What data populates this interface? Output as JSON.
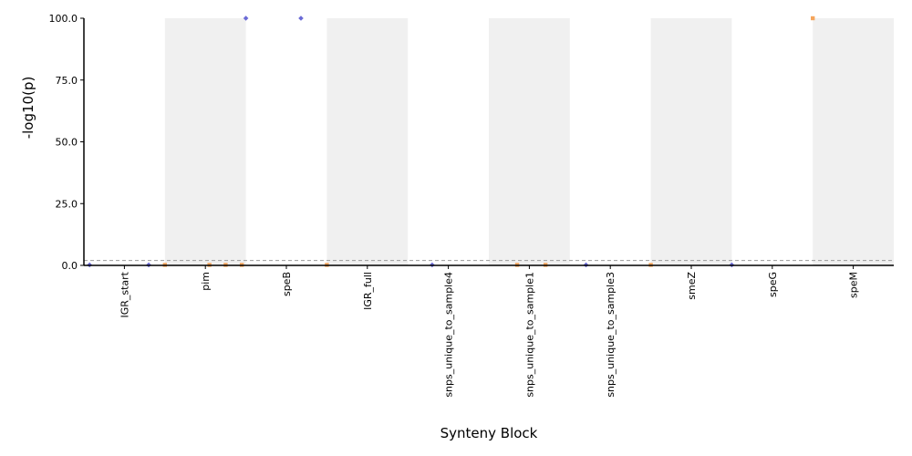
{
  "chart_data": {
    "type": "scatter",
    "subtype": "manhattan",
    "title": "",
    "xlabel": "Synteny Block",
    "ylabel": "-log10(p)",
    "ylim": [
      0,
      100
    ],
    "y_ticks": [
      "0.0",
      "25.0",
      "50.0",
      "75.0",
      "100.0"
    ],
    "threshold": 2.0,
    "grid": false,
    "categories": [
      "IGR_start",
      "pim",
      "speB",
      "IGR_full",
      "snps_unique_to_sample4",
      "snps_unique_to_sample1",
      "snps_unique_to_sample3",
      "smeZ",
      "speG",
      "speM"
    ],
    "band_shaded": [
      false,
      true,
      false,
      true,
      false,
      true,
      false,
      true,
      false,
      true
    ],
    "colors": {
      "band": "#f0f0f0",
      "blue": "#6a6ad6",
      "orange": "#f5a55c",
      "threshold": "#999999",
      "axis": "#000000"
    },
    "points": [
      {
        "x": 0.07,
        "y": 0.2,
        "color": "blue"
      },
      {
        "x": 0.8,
        "y": 0.2,
        "color": "blue"
      },
      {
        "x": 1.0,
        "y": 0.2,
        "color": "orange"
      },
      {
        "x": 1.55,
        "y": 0.2,
        "color": "orange"
      },
      {
        "x": 1.75,
        "y": 0.2,
        "color": "orange"
      },
      {
        "x": 1.95,
        "y": 0.2,
        "color": "orange"
      },
      {
        "x": 2.0,
        "y": 100.0,
        "color": "blue"
      },
      {
        "x": 2.68,
        "y": 100.0,
        "color": "blue"
      },
      {
        "x": 3.0,
        "y": 0.2,
        "color": "orange"
      },
      {
        "x": 4.3,
        "y": 0.2,
        "color": "blue"
      },
      {
        "x": 5.35,
        "y": 0.2,
        "color": "orange"
      },
      {
        "x": 5.7,
        "y": 0.2,
        "color": "orange"
      },
      {
        "x": 6.2,
        "y": 0.2,
        "color": "blue"
      },
      {
        "x": 7.0,
        "y": 0.2,
        "color": "orange"
      },
      {
        "x": 8.0,
        "y": 0.2,
        "color": "blue"
      },
      {
        "x": 9.0,
        "y": 100.0,
        "color": "orange"
      }
    ]
  }
}
